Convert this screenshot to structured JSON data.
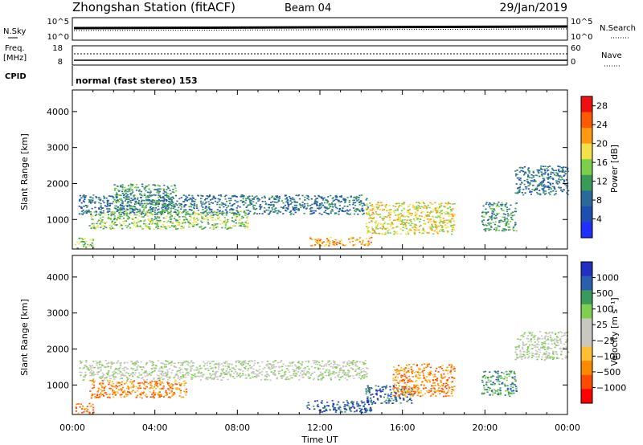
{
  "header": {
    "station": "Zhongshan Station (fitACF)",
    "beam": "Beam 04",
    "date": "29/Jan/2019"
  },
  "top_panels": {
    "nsky_label": "N.Sky",
    "nsky_ticks": [
      "10^5",
      "10^0"
    ],
    "nsearch_label": "N.Search",
    "nsearch_ticks": [
      "10^5",
      "10^0"
    ],
    "freq_label_1": "Freq.",
    "freq_label_2": "[MHz]",
    "freq_ticks": [
      "18",
      "8"
    ],
    "nave_label": "Nave",
    "nave_ticks": [
      "60",
      "0"
    ],
    "cpid_label": "CPID",
    "cpid_text": "normal (fast stereo) 153"
  },
  "colors": {
    "power_scale": [
      "#1f2fff",
      "#1d4fb0",
      "#2a6a9a",
      "#3a9a5a",
      "#7ad04a",
      "#f2e14a",
      "#ff9a12",
      "#ff5a00",
      "#ee1010"
    ],
    "velocity_scale": [
      "#ff0000",
      "#ff4a00",
      "#ff8a00",
      "#ffbf33",
      "#c8c8c0",
      "#c8c8c0",
      "#80d050",
      "#3a9a5a",
      "#2a5fb0",
      "#2030c0"
    ]
  },
  "chart_data": [
    {
      "type": "heatmap",
      "panel": "power",
      "ylabel": "Slant Range [km]",
      "yticks": [
        "1000",
        "2000",
        "3000",
        "4000"
      ],
      "ylim": [
        180,
        4600
      ],
      "xlim": [
        0,
        24
      ],
      "colorbar_label": "Power [dB]",
      "colorbar_ticks": [
        "4",
        "8",
        "12",
        "16",
        "20",
        "24",
        "28"
      ],
      "colorbar_range": [
        0,
        30
      ],
      "regions": [
        {
          "t0": 0.3,
          "t1": 14.3,
          "r0": 1150,
          "r1": 1700,
          "value": 8
        },
        {
          "t0": 0.8,
          "t1": 8.5,
          "r0": 750,
          "r1": 1250,
          "value": 14
        },
        {
          "t0": 2.0,
          "t1": 5.0,
          "r0": 1250,
          "r1": 2000,
          "value": 12
        },
        {
          "t0": 11.5,
          "t1": 14.5,
          "r0": 280,
          "r1": 520,
          "value": 22
        },
        {
          "t0": 14.2,
          "t1": 18.5,
          "r0": 600,
          "r1": 1500,
          "value": 20
        },
        {
          "t0": 19.8,
          "t1": 21.5,
          "r0": 700,
          "r1": 1500,
          "value": 12
        },
        {
          "t0": 21.4,
          "t1": 24.0,
          "r0": 1700,
          "r1": 2500,
          "value": 8
        },
        {
          "t0": 0.1,
          "t1": 1.0,
          "r0": 200,
          "r1": 500,
          "value": 16
        }
      ]
    },
    {
      "type": "heatmap",
      "panel": "velocity",
      "ylabel": "Slant Range [km]",
      "yticks": [
        "1000",
        "2000",
        "3000",
        "4000"
      ],
      "ylim": [
        180,
        4600
      ],
      "xlim": [
        0,
        24
      ],
      "xticks": [
        "00:00",
        "04:00",
        "08:00",
        "12:00",
        "16:00",
        "20:00",
        "00:00"
      ],
      "xlabel": "Time UT",
      "colorbar_label": "Velocity [m s⁻¹]",
      "colorbar_ticks": [
        "1000",
        "500",
        "100",
        "25",
        "−25",
        "−100",
        "−500",
        "−1000"
      ],
      "regions": [
        {
          "t0": 0.3,
          "t1": 14.3,
          "r0": 1150,
          "r1": 1700,
          "value": 0
        },
        {
          "t0": 0.8,
          "t1": 5.5,
          "r0": 650,
          "r1": 1150,
          "value": -200
        },
        {
          "t0": 11.3,
          "t1": 14.5,
          "r0": 250,
          "r1": 600,
          "value": 200
        },
        {
          "t0": 14.2,
          "t1": 16.5,
          "r0": 500,
          "r1": 1000,
          "value": 300
        },
        {
          "t0": 15.5,
          "t1": 18.5,
          "r0": 700,
          "r1": 1600,
          "value": -200
        },
        {
          "t0": 19.8,
          "t1": 21.5,
          "r0": 700,
          "r1": 1400,
          "value": 50
        },
        {
          "t0": 21.4,
          "t1": 24.0,
          "r0": 1700,
          "r1": 2500,
          "value": 0
        },
        {
          "t0": 0.1,
          "t1": 1.0,
          "r0": 200,
          "r1": 500,
          "value": -300
        }
      ]
    }
  ]
}
